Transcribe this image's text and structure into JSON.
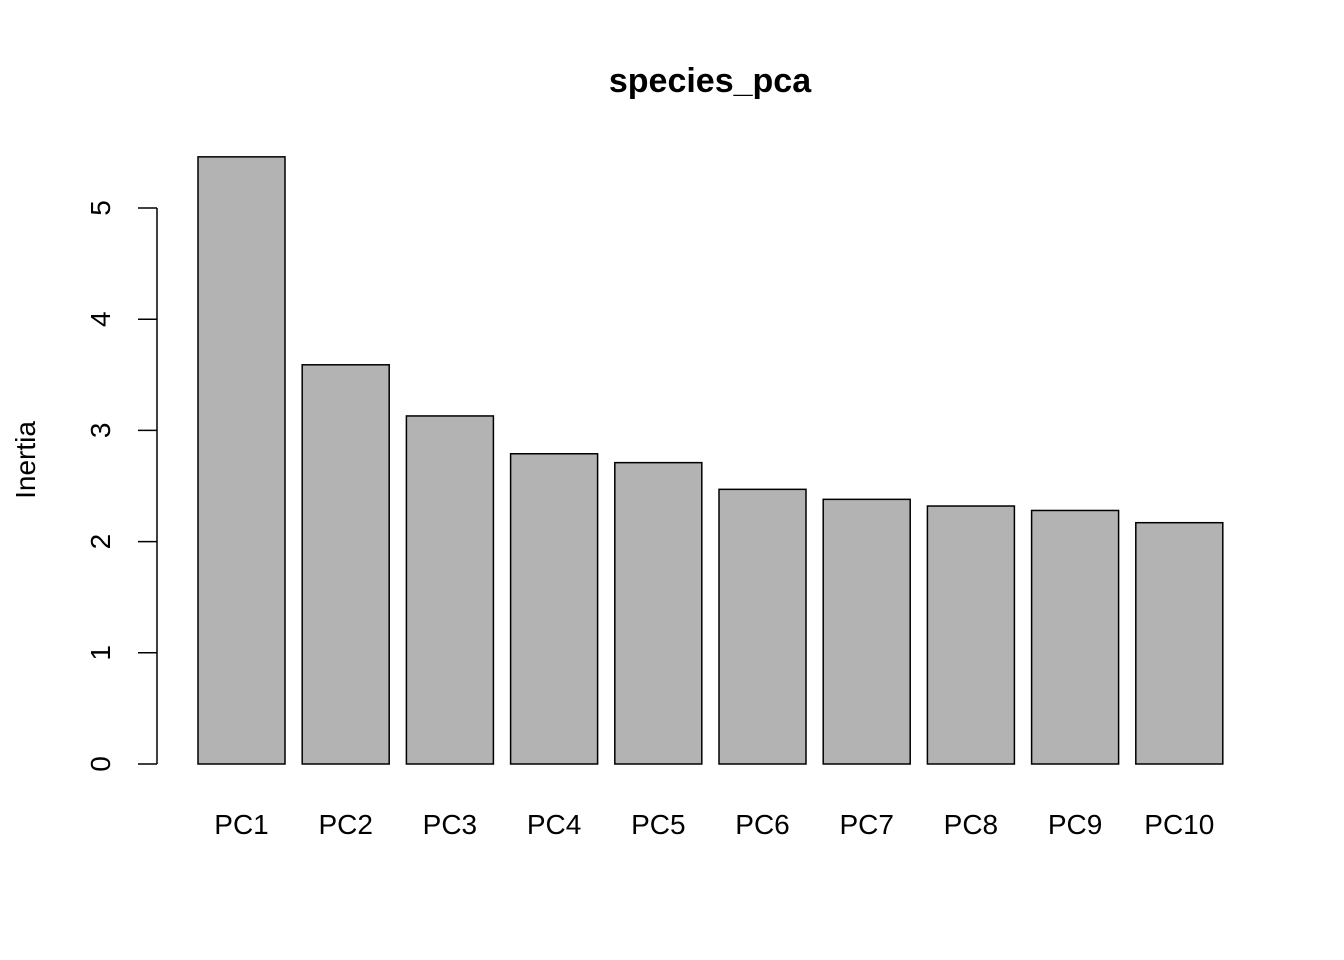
{
  "chart_data": {
    "type": "bar",
    "title": "species_pca",
    "xlabel": "",
    "ylabel": "Inertia",
    "categories": [
      "PC1",
      "PC2",
      "PC3",
      "PC4",
      "PC5",
      "PC6",
      "PC7",
      "PC8",
      "PC9",
      "PC10"
    ],
    "values": [
      5.46,
      3.59,
      3.13,
      2.79,
      2.71,
      2.47,
      2.38,
      2.32,
      2.28,
      2.17
    ],
    "ylim": [
      0,
      5
    ],
    "yticks": [
      "0",
      "1",
      "2",
      "3",
      "4",
      "5"
    ],
    "grid": false,
    "bar_color": "#b3b3b3",
    "edge_color": "#000000"
  }
}
